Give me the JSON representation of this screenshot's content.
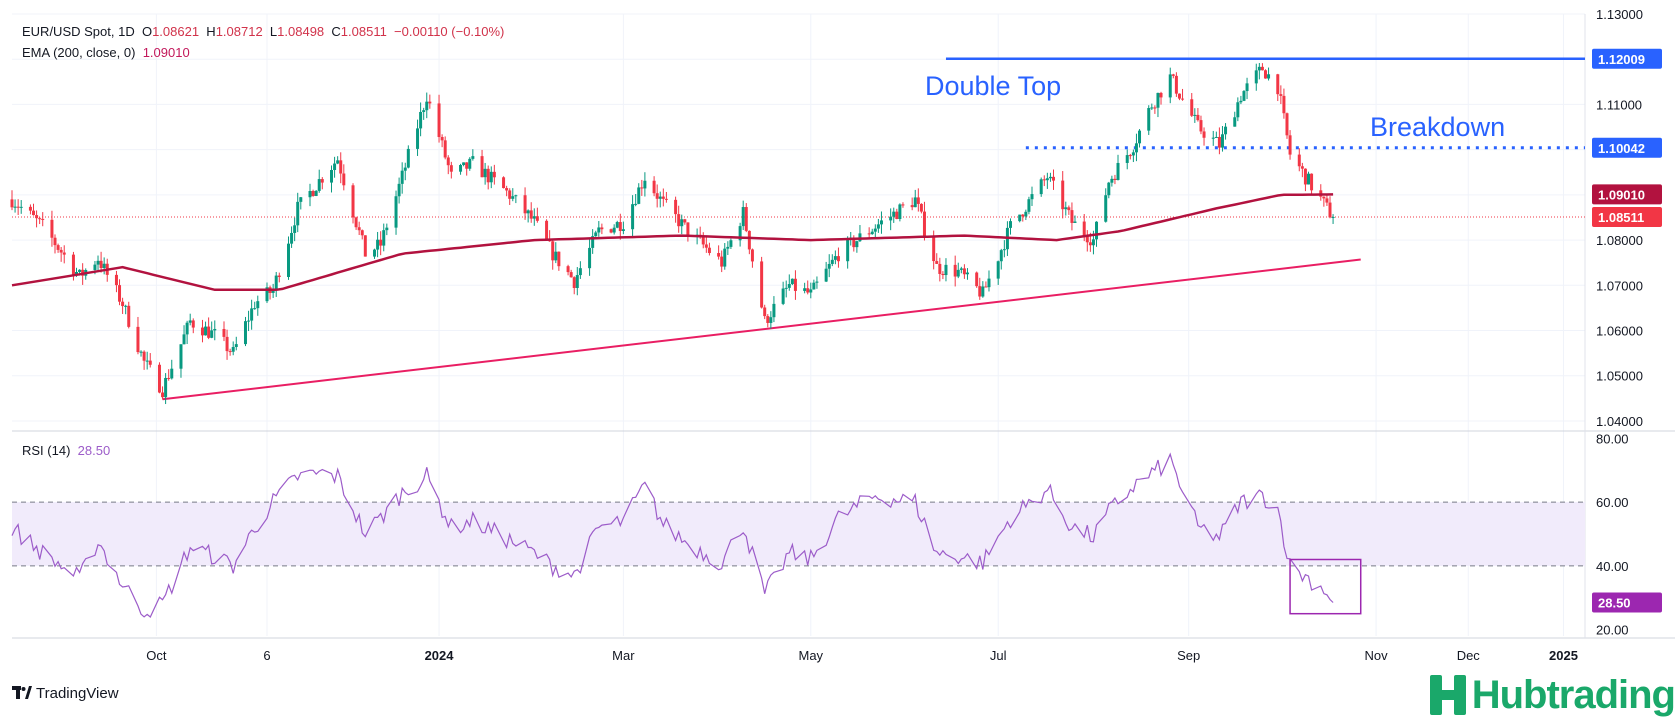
{
  "legend": {
    "symbol": "EUR/USD Spot, 1D",
    "open_label": "O",
    "open": "1.08621",
    "high_label": "H",
    "high": "1.08712",
    "low_label": "L",
    "low": "1.08498",
    "close_label": "C",
    "close": "1.08511",
    "change": "−0.00110 (−0.10%)",
    "ema_label": "EMA (200, close, 0)",
    "ema_value": "1.09010",
    "rsi_label": "RSI (14)",
    "rsi_value": "28.50"
  },
  "annotations": {
    "double_top": "Double Top",
    "breakdown": "Breakdown"
  },
  "price_axis": {
    "ticks": [
      "1.13000",
      "1.12000",
      "1.11000",
      "1.10000",
      "1.09000",
      "1.08000",
      "1.07000",
      "1.06000",
      "1.05000",
      "1.04000"
    ],
    "tick_values": [
      1.13,
      1.12,
      1.11,
      1.1,
      1.09,
      1.08,
      1.07,
      1.06,
      1.05,
      1.04
    ],
    "badges": [
      {
        "label": "1.12009",
        "value": 1.12009,
        "color": "#2962ff"
      },
      {
        "label": "1.10042",
        "value": 1.10042,
        "color": "#2962ff"
      },
      {
        "label": "1.09010",
        "value": 1.0901,
        "color": "#b2123f"
      },
      {
        "label": "1.08511",
        "value": 1.08511,
        "color": "#f23645"
      }
    ]
  },
  "rsi_axis": {
    "ticks": [
      "80.00",
      "60.00",
      "40.00",
      "20.00"
    ],
    "tick_values": [
      80,
      60,
      40,
      20
    ],
    "badge": {
      "label": "28.50",
      "value": 28.5,
      "color": "#9c27b0"
    }
  },
  "time_axis": {
    "labels": [
      {
        "text": "Oct",
        "date": "2023-10-01",
        "bold": false
      },
      {
        "text": "6",
        "date": "2023-11-06",
        "bold": false
      },
      {
        "text": "2024",
        "date": "2024-01-01",
        "bold": true
      },
      {
        "text": "Mar",
        "date": "2024-03-01",
        "bold": false
      },
      {
        "text": "May",
        "date": "2024-05-01",
        "bold": false
      },
      {
        "text": "Jul",
        "date": "2024-07-01",
        "bold": false
      },
      {
        "text": "Sep",
        "date": "2024-09-01",
        "bold": false
      },
      {
        "text": "Nov",
        "date": "2024-11-01",
        "bold": false
      },
      {
        "text": "Dec",
        "date": "2024-12-01",
        "bold": false
      },
      {
        "text": "2025",
        "date": "2025-01-01",
        "bold": true
      }
    ]
  },
  "branding": {
    "tradingview": "TradingView",
    "hubtrading": "Hubtrading"
  },
  "colors": {
    "up": "#089981",
    "down": "#f23645",
    "ema": "#b2123f",
    "trend": "#e91e63",
    "levels": "#2962ff",
    "rsi": "#9c5cc9",
    "rsi_band": "#f1ebfb",
    "grid": "#f0f3fa",
    "hub": "#1aa86a"
  },
  "chart_data": {
    "type": "candlestick",
    "symbol": "EUR/USD Spot",
    "interval": "1D",
    "x_range": [
      "2023-08-15",
      "2025-01-08"
    ],
    "ylim": [
      1.038,
      1.13
    ],
    "grid": true,
    "price_path": [
      [
        "2023-08-15",
        1.089
      ],
      [
        "2023-08-25",
        1.083
      ],
      [
        "2023-09-06",
        1.072
      ],
      [
        "2023-09-12",
        1.076
      ],
      [
        "2023-09-20",
        1.066
      ],
      [
        "2023-09-27",
        1.053
      ],
      [
        "2023-10-03",
        1.047
      ],
      [
        "2023-10-12",
        1.062
      ],
      [
        "2023-10-20",
        1.059
      ],
      [
        "2023-10-26",
        1.055
      ],
      [
        "2023-11-02",
        1.066
      ],
      [
        "2023-11-08",
        1.069
      ],
      [
        "2023-11-16",
        1.087
      ],
      [
        "2023-11-24",
        1.094
      ],
      [
        "2023-11-29",
        1.098
      ],
      [
        "2023-12-08",
        1.077
      ],
      [
        "2023-12-13",
        1.079
      ],
      [
        "2023-12-20",
        1.094
      ],
      [
        "2023-12-28",
        1.112
      ],
      [
        "2024-01-05",
        1.094
      ],
      [
        "2024-01-12",
        1.097
      ],
      [
        "2024-01-24",
        1.09
      ],
      [
        "2024-02-01",
        1.084
      ],
      [
        "2024-02-07",
        1.077
      ],
      [
        "2024-02-14",
        1.071
      ],
      [
        "2024-02-22",
        1.082
      ],
      [
        "2024-03-01",
        1.084
      ],
      [
        "2024-03-08",
        1.094
      ],
      [
        "2024-03-14",
        1.088
      ],
      [
        "2024-03-22",
        1.082
      ],
      [
        "2024-04-02",
        1.075
      ],
      [
        "2024-04-09",
        1.086
      ],
      [
        "2024-04-16",
        1.062
      ],
      [
        "2024-04-24",
        1.07
      ],
      [
        "2024-05-01",
        1.068
      ],
      [
        "2024-05-10",
        1.077
      ],
      [
        "2024-05-22",
        1.083
      ],
      [
        "2024-06-04",
        1.089
      ],
      [
        "2024-06-11",
        1.074
      ],
      [
        "2024-06-18",
        1.073
      ],
      [
        "2024-06-26",
        1.068
      ],
      [
        "2024-07-05",
        1.083
      ],
      [
        "2024-07-17",
        1.094
      ],
      [
        "2024-07-25",
        1.084
      ],
      [
        "2024-08-01",
        1.08
      ],
      [
        "2024-08-06",
        1.093
      ],
      [
        "2024-08-14",
        1.101
      ],
      [
        "2024-08-20",
        1.11
      ],
      [
        "2024-08-26",
        1.116
      ],
      [
        "2024-09-04",
        1.105
      ],
      [
        "2024-09-11",
        1.101
      ],
      [
        "2024-09-18",
        1.112
      ],
      [
        "2024-09-25",
        1.118
      ],
      [
        "2024-09-30",
        1.114
      ],
      [
        "2024-10-04",
        1.099
      ],
      [
        "2024-10-10",
        1.093
      ],
      [
        "2024-10-16",
        1.087
      ],
      [
        "2024-10-18",
        1.0851
      ]
    ],
    "ema200_path": [
      [
        "2023-08-15",
        1.07
      ],
      [
        "2023-09-20",
        1.074
      ],
      [
        "2023-10-20",
        1.069
      ],
      [
        "2023-11-10",
        1.069
      ],
      [
        "2023-12-20",
        1.077
      ],
      [
        "2024-02-01",
        1.08
      ],
      [
        "2024-03-20",
        1.081
      ],
      [
        "2024-05-01",
        1.08
      ],
      [
        "2024-06-20",
        1.081
      ],
      [
        "2024-07-20",
        1.08
      ],
      [
        "2024-08-10",
        1.082
      ],
      [
        "2024-09-10",
        1.087
      ],
      [
        "2024-10-01",
        1.09
      ],
      [
        "2024-10-18",
        1.0901
      ]
    ],
    "trendline": {
      "from": [
        "2023-10-03",
        1.0448
      ],
      "to": [
        "2024-10-27",
        1.0757
      ]
    },
    "resistance": {
      "from": [
        "2024-06-14",
        1.12009
      ],
      "to": [
        "2025-01-08",
        1.12009
      ],
      "label": "Double Top"
    },
    "support_dotted": {
      "from": [
        "2024-07-10",
        1.10042
      ],
      "to": [
        "2025-01-08",
        1.10042
      ],
      "label": "Breakdown"
    },
    "last_close": 1.08511,
    "rsi": {
      "period": 14,
      "ylim": [
        18,
        82
      ],
      "bands": [
        40,
        60
      ],
      "last": 28.5,
      "path": [
        [
          "2023-08-15",
          52
        ],
        [
          "2023-08-25",
          44
        ],
        [
          "2023-09-06",
          36
        ],
        [
          "2023-09-12",
          48
        ],
        [
          "2023-09-20",
          34
        ],
        [
          "2023-09-27",
          26
        ],
        [
          "2023-10-03",
          28
        ],
        [
          "2023-10-12",
          46
        ],
        [
          "2023-10-20",
          43
        ],
        [
          "2023-10-26",
          40
        ],
        [
          "2023-11-02",
          52
        ],
        [
          "2023-11-08",
          60
        ],
        [
          "2023-11-16",
          68
        ],
        [
          "2023-11-24",
          69
        ],
        [
          "2023-11-29",
          68
        ],
        [
          "2023-12-08",
          50
        ],
        [
          "2023-12-13",
          55
        ],
        [
          "2023-12-20",
          63
        ],
        [
          "2023-12-28",
          68
        ],
        [
          "2024-01-05",
          52
        ],
        [
          "2024-01-12",
          54
        ],
        [
          "2024-01-24",
          48
        ],
        [
          "2024-02-01",
          44
        ],
        [
          "2024-02-07",
          40
        ],
        [
          "2024-02-14",
          37
        ],
        [
          "2024-02-22",
          52
        ],
        [
          "2024-03-01",
          54
        ],
        [
          "2024-03-08",
          65
        ],
        [
          "2024-03-14",
          53
        ],
        [
          "2024-03-22",
          47
        ],
        [
          "2024-04-02",
          41
        ],
        [
          "2024-04-09",
          53
        ],
        [
          "2024-04-16",
          31
        ],
        [
          "2024-04-24",
          44
        ],
        [
          "2024-05-01",
          42
        ],
        [
          "2024-05-10",
          55
        ],
        [
          "2024-05-22",
          62
        ],
        [
          "2024-06-04",
          60
        ],
        [
          "2024-06-11",
          44
        ],
        [
          "2024-06-18",
          43
        ],
        [
          "2024-06-26",
          41
        ],
        [
          "2024-07-05",
          55
        ],
        [
          "2024-07-17",
          64
        ],
        [
          "2024-07-25",
          52
        ],
        [
          "2024-08-01",
          49
        ],
        [
          "2024-08-06",
          57
        ],
        [
          "2024-08-14",
          65
        ],
        [
          "2024-08-20",
          69
        ],
        [
          "2024-08-26",
          73
        ],
        [
          "2024-09-04",
          52
        ],
        [
          "2024-09-11",
          49
        ],
        [
          "2024-09-18",
          60
        ],
        [
          "2024-09-25",
          62
        ],
        [
          "2024-09-30",
          58
        ],
        [
          "2024-10-04",
          40
        ],
        [
          "2024-10-10",
          36
        ],
        [
          "2024-10-16",
          32
        ],
        [
          "2024-10-18",
          28.5
        ]
      ],
      "highlight_box": {
        "from": "2024-10-04",
        "to": "2024-10-27",
        "y_range": [
          25,
          42
        ]
      }
    }
  }
}
